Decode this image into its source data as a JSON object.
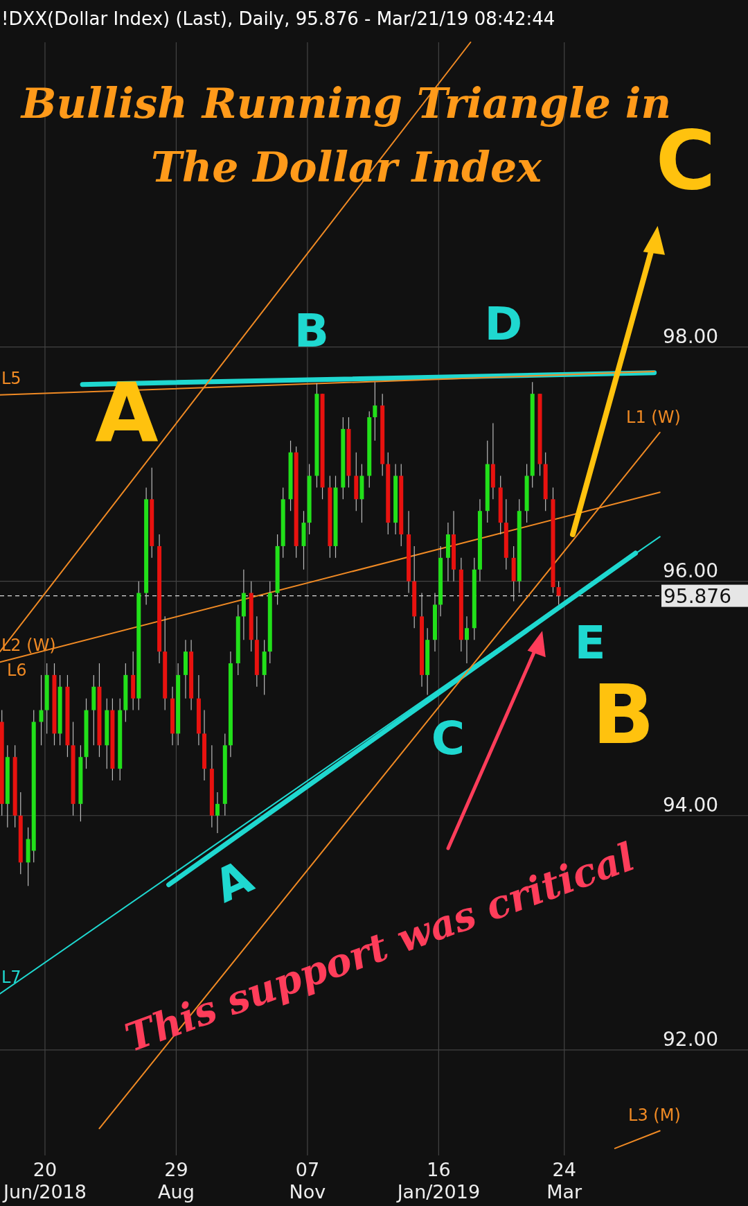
{
  "chart_data": {
    "type": "candlestick",
    "title": "Bullish Running Triangle in The Dollar Index",
    "subtitle": "!DXX(Dollar Index) (Last),  Daily, 95.876 - Mar/21/19 08:42:44",
    "xlim": [
      "2018-05-27",
      "2019-06-30"
    ],
    "xticks": [
      {
        "value": "2018-06-20",
        "label": "20\nJun/2018"
      },
      {
        "value": "2018-08-29",
        "label": "29\nAug"
      },
      {
        "value": "2018-11-07",
        "label": "07\nNov"
      },
      {
        "value": "2019-01-16",
        "label": "16\nJan/2019"
      },
      {
        "value": "2019-03-24",
        "label": "24\nMar"
      }
    ],
    "ylim": [
      91.1,
      100.6
    ],
    "yticks": [
      {
        "value": 92,
        "label": "92.00"
      },
      {
        "value": 94,
        "label": "94.00"
      },
      {
        "value": 96,
        "label": "96.00"
      },
      {
        "value": 98,
        "label": "98.00"
      }
    ],
    "grid": true,
    "x": [
      "2018-05-28",
      "2018-05-31",
      "2018-06-04",
      "2018-06-07",
      "2018-06-11",
      "2018-06-14",
      "2018-06-18",
      "2018-06-21",
      "2018-06-25",
      "2018-06-28",
      "2018-07-02",
      "2018-07-05",
      "2018-07-09",
      "2018-07-12",
      "2018-07-16",
      "2018-07-19",
      "2018-07-23",
      "2018-07-26",
      "2018-07-30",
      "2018-08-02",
      "2018-08-06",
      "2018-08-09",
      "2018-08-13",
      "2018-08-16",
      "2018-08-20",
      "2018-08-23",
      "2018-08-27",
      "2018-08-30",
      "2018-09-03",
      "2018-09-06",
      "2018-09-10",
      "2018-09-13",
      "2018-09-17",
      "2018-09-20",
      "2018-09-24",
      "2018-09-27",
      "2018-10-01",
      "2018-10-04",
      "2018-10-08",
      "2018-10-11",
      "2018-10-15",
      "2018-10-18",
      "2018-10-22",
      "2018-10-25",
      "2018-10-29",
      "2018-11-01",
      "2018-11-05",
      "2018-11-08",
      "2018-11-12",
      "2018-11-15",
      "2018-11-19",
      "2018-11-22",
      "2018-11-26",
      "2018-11-29",
      "2018-12-03",
      "2018-12-06",
      "2018-12-10",
      "2018-12-13",
      "2018-12-17",
      "2018-12-20",
      "2018-12-24",
      "2018-12-27",
      "2018-12-31",
      "2019-01-03",
      "2019-01-07",
      "2019-01-10",
      "2019-01-14",
      "2019-01-17",
      "2019-01-21",
      "2019-01-24",
      "2019-01-28",
      "2019-01-31",
      "2019-02-04",
      "2019-02-07",
      "2019-02-11",
      "2019-02-14",
      "2019-02-18",
      "2019-02-21",
      "2019-02-25",
      "2019-02-28",
      "2019-03-04",
      "2019-03-07",
      "2019-03-11",
      "2019-03-14",
      "2019-03-18",
      "2019-03-21"
    ],
    "ohlc": [
      [
        94.8,
        94.9,
        94.0,
        94.1
      ],
      [
        94.1,
        94.6,
        93.9,
        94.5
      ],
      [
        94.5,
        94.6,
        93.9,
        94.0
      ],
      [
        94.0,
        94.2,
        93.5,
        93.6
      ],
      [
        93.6,
        93.9,
        93.4,
        93.8
      ],
      [
        93.7,
        94.9,
        93.6,
        94.8
      ],
      [
        94.8,
        95.2,
        94.6,
        94.9
      ],
      [
        94.9,
        95.3,
        94.7,
        95.2
      ],
      [
        95.2,
        95.3,
        94.6,
        94.7
      ],
      [
        94.7,
        95.2,
        94.6,
        95.1
      ],
      [
        95.1,
        95.2,
        94.5,
        94.6
      ],
      [
        94.6,
        94.8,
        94.0,
        94.1
      ],
      [
        94.1,
        94.6,
        93.95,
        94.5
      ],
      [
        94.5,
        95.0,
        94.4,
        94.9
      ],
      [
        94.9,
        95.2,
        94.6,
        95.1
      ],
      [
        95.1,
        95.3,
        94.5,
        94.6
      ],
      [
        94.6,
        95.0,
        94.4,
        94.9
      ],
      [
        94.9,
        95.0,
        94.3,
        94.4
      ],
      [
        94.4,
        95.0,
        94.3,
        94.9
      ],
      [
        94.9,
        95.3,
        94.8,
        95.2
      ],
      [
        95.2,
        95.4,
        94.9,
        95.0
      ],
      [
        95.0,
        96.0,
        94.9,
        95.9
      ],
      [
        95.9,
        96.8,
        95.8,
        96.7
      ],
      [
        96.7,
        96.97,
        96.2,
        96.3
      ],
      [
        96.3,
        96.4,
        95.3,
        95.4
      ],
      [
        95.4,
        95.7,
        94.9,
        95.0
      ],
      [
        95.0,
        95.1,
        94.6,
        94.7
      ],
      [
        94.7,
        95.3,
        94.6,
        95.2
      ],
      [
        95.2,
        95.5,
        95.0,
        95.4
      ],
      [
        95.4,
        95.5,
        94.9,
        95.0
      ],
      [
        95.0,
        95.2,
        94.6,
        94.7
      ],
      [
        94.7,
        94.9,
        94.3,
        94.4
      ],
      [
        94.4,
        94.6,
        93.9,
        94.0
      ],
      [
        94.0,
        94.2,
        93.85,
        94.1
      ],
      [
        94.1,
        94.7,
        94.0,
        94.6
      ],
      [
        94.6,
        95.4,
        94.5,
        95.3
      ],
      [
        95.3,
        95.8,
        95.2,
        95.7
      ],
      [
        95.7,
        96.1,
        95.5,
        95.9
      ],
      [
        95.9,
        96.0,
        95.4,
        95.5
      ],
      [
        95.5,
        95.7,
        95.1,
        95.2
      ],
      [
        95.2,
        95.5,
        95.03,
        95.4
      ],
      [
        95.4,
        96.0,
        95.3,
        95.9
      ],
      [
        95.9,
        96.4,
        95.8,
        96.3
      ],
      [
        96.3,
        96.8,
        96.2,
        96.7
      ],
      [
        96.7,
        97.2,
        96.6,
        97.1
      ],
      [
        97.1,
        97.15,
        96.2,
        96.3
      ],
      [
        96.3,
        96.6,
        96.1,
        96.5
      ],
      [
        96.5,
        97.0,
        96.4,
        96.9
      ],
      [
        96.9,
        97.69,
        96.8,
        97.6
      ],
      [
        97.6,
        97.6,
        96.7,
        96.8
      ],
      [
        96.8,
        96.9,
        96.2,
        96.3
      ],
      [
        96.3,
        96.9,
        96.2,
        96.8
      ],
      [
        96.8,
        97.4,
        96.7,
        97.3
      ],
      [
        97.3,
        97.4,
        96.8,
        96.9
      ],
      [
        96.9,
        97.1,
        96.6,
        96.7
      ],
      [
        96.7,
        97.0,
        96.5,
        96.9
      ],
      [
        96.9,
        97.45,
        96.8,
        97.4
      ],
      [
        97.4,
        97.7,
        97.2,
        97.5
      ],
      [
        97.5,
        97.6,
        96.9,
        97.0
      ],
      [
        97.0,
        97.1,
        96.4,
        96.5
      ],
      [
        96.5,
        97.0,
        96.4,
        96.9
      ],
      [
        96.9,
        97.0,
        96.3,
        96.4
      ],
      [
        96.4,
        96.6,
        95.9,
        96.0
      ],
      [
        96.0,
        96.3,
        95.6,
        95.7
      ],
      [
        95.7,
        95.9,
        95.1,
        95.2
      ],
      [
        95.2,
        95.6,
        95.03,
        95.5
      ],
      [
        95.5,
        95.9,
        95.4,
        95.8
      ],
      [
        95.8,
        96.3,
        95.7,
        96.2
      ],
      [
        96.2,
        96.5,
        96.0,
        96.4
      ],
      [
        96.4,
        96.6,
        96.0,
        96.1
      ],
      [
        96.1,
        96.2,
        95.4,
        95.5
      ],
      [
        95.5,
        95.7,
        95.3,
        95.6
      ],
      [
        95.6,
        96.2,
        95.5,
        96.1
      ],
      [
        96.1,
        96.7,
        96.0,
        96.6
      ],
      [
        96.6,
        97.2,
        96.5,
        97.0
      ],
      [
        97.0,
        97.35,
        96.7,
        96.8
      ],
      [
        96.8,
        96.9,
        96.4,
        96.5
      ],
      [
        96.5,
        96.7,
        96.1,
        96.2
      ],
      [
        96.2,
        96.3,
        95.83,
        96.0
      ],
      [
        96.0,
        96.7,
        95.9,
        96.6
      ],
      [
        96.6,
        97.0,
        96.5,
        96.9
      ],
      [
        96.9,
        97.7,
        96.8,
        97.6
      ],
      [
        97.6,
        97.6,
        96.9,
        97.0
      ],
      [
        97.0,
        97.1,
        96.6,
        96.7
      ],
      [
        96.7,
        96.8,
        95.9,
        95.95
      ],
      [
        95.95,
        96.0,
        95.8,
        95.876
      ]
    ],
    "series": [
      {
        "type": "line",
        "color": "#1fd8d0",
        "x": [
          "2018-07-10",
          "2019-05-11"
        ],
        "values": [
          97.68,
          97.78
        ]
      },
      {
        "type": "line",
        "color": "#1fd8d0",
        "x": [
          "2018-08-25",
          "2019-05-01"
        ],
        "values": [
          93.41,
          96.24
        ]
      },
      {
        "type": "line",
        "name": "L7",
        "color": "#1fd8d0",
        "x": [
          "2018-05-27",
          "2019-05-14"
        ],
        "values": [
          92.48,
          96.38
        ]
      },
      {
        "type": "line",
        "name": "L5",
        "color": "#f08a24",
        "x": [
          "2018-05-27",
          "2019-05-11"
        ],
        "values": [
          97.59,
          97.79
        ]
      },
      {
        "type": "line",
        "name": "L2 (W)",
        "color": "#f08a24",
        "x": [
          "2018-05-27",
          "2019-05-14"
        ],
        "values": [
          95.31,
          96.76
        ]
      },
      {
        "type": "line",
        "color": "#f08a24",
        "x": [
          "2018-05-27",
          "2019-02-02"
        ],
        "values": [
          95.4,
          100.6
        ]
      },
      {
        "type": "line",
        "name": "L1 (W)",
        "color": "#f08a24",
        "x": [
          "2018-07-19",
          "2019-05-14"
        ],
        "values": [
          91.33,
          97.27
        ]
      },
      {
        "type": "line",
        "name": "L3 (M)",
        "color": "#f08a24",
        "x": [
          "2019-04-20",
          "2019-05-14"
        ],
        "values": [
          91.16,
          91.31
        ]
      }
    ],
    "ref_lines": [
      {
        "axis": "y",
        "value": 95.876,
        "label": "95.876",
        "color": "#dddddd",
        "line_style": "dashed"
      }
    ],
    "annotations": [
      "A",
      "B",
      "C",
      "D",
      "E",
      "A",
      "B",
      "C",
      "L6",
      "This support was critical"
    ]
  }
}
